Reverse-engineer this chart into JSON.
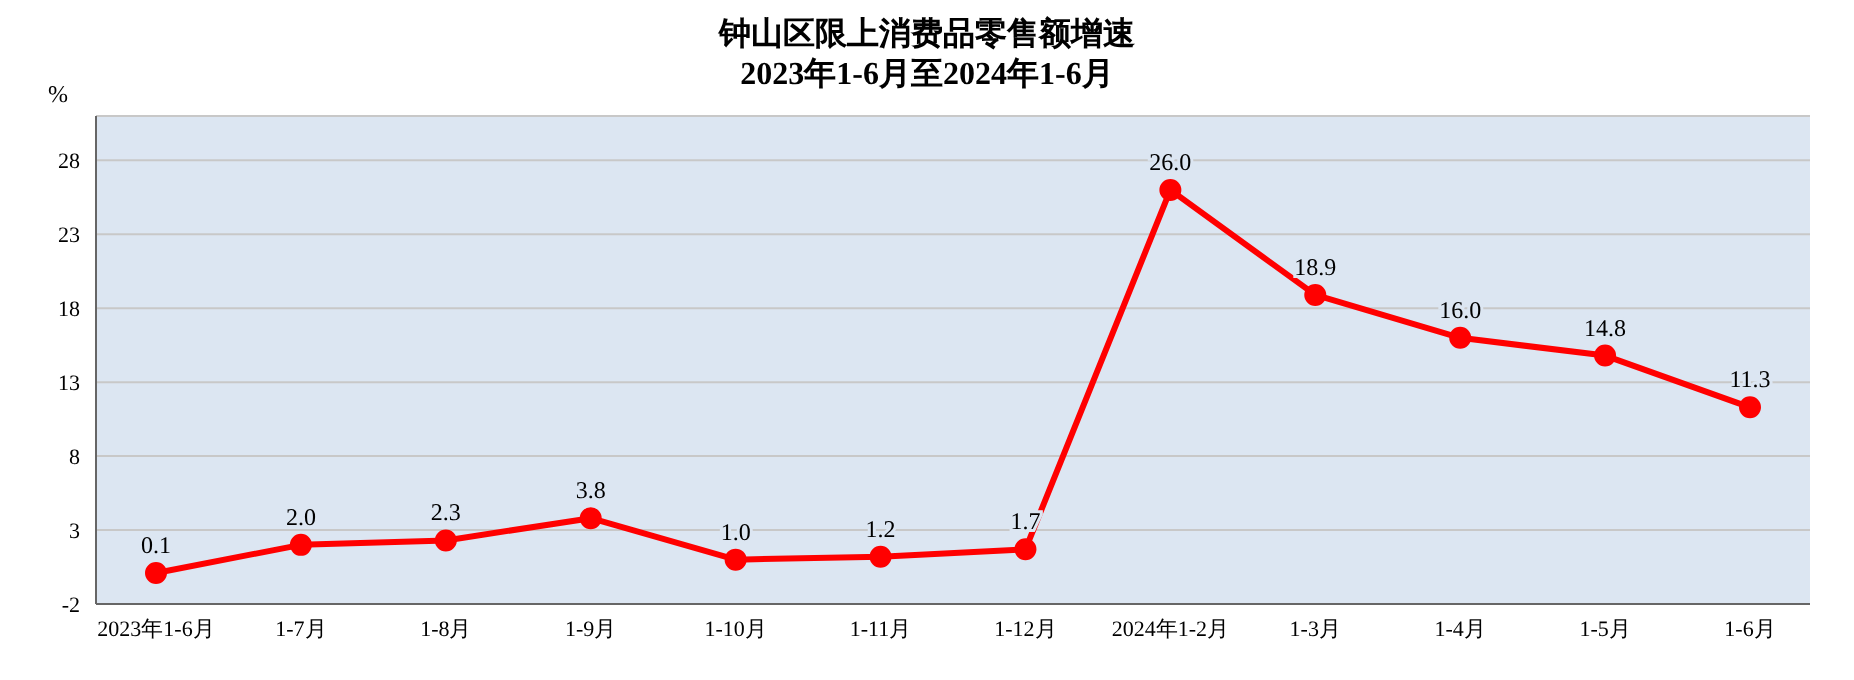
{
  "chart_data": {
    "type": "line",
    "title": "钟山区限上消费品零售额增速",
    "subtitle": "2023年1-6月至2024年1-6月",
    "ylabel": "%",
    "categories": [
      "2023年1-6月",
      "1-7月",
      "1-8月",
      "1-9月",
      "1-10月",
      "1-11月",
      "1-12月",
      "2024年1-2月",
      "1-3月",
      "1-4月",
      "1-5月",
      "1-6月"
    ],
    "series": [
      {
        "color": "#ff0000",
        "values": [
          0.1,
          2.0,
          2.3,
          3.8,
          1.0,
          1.2,
          1.7,
          26.0,
          18.9,
          16.0,
          14.8,
          11.3
        ],
        "value_labels": [
          "0.1",
          "2.0",
          "2.3",
          "3.8",
          "1.0",
          "1.2",
          "1.7",
          "26.0",
          "18.9",
          "16.0",
          "14.8",
          "11.3"
        ]
      }
    ],
    "ylim": [
      -2,
      31
    ],
    "yticks": [
      -2,
      3,
      8,
      13,
      18,
      23,
      28
    ],
    "grid": "y",
    "marker": "circle",
    "line_style": "solid"
  }
}
